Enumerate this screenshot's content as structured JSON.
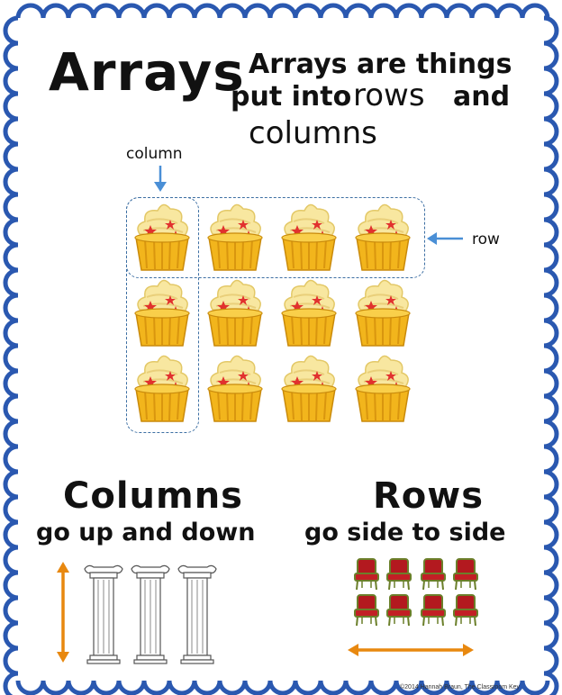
{
  "title": "Arrays",
  "definition": {
    "line1": "Arrays are things",
    "line2_prefix": "put into",
    "line2_word": "rows",
    "line2_suffix": "and",
    "line3_word": "columns"
  },
  "labels": {
    "column": "column",
    "row": "row"
  },
  "array": {
    "rows": 3,
    "columns": 4
  },
  "columns_section": {
    "heading": "Columns",
    "subheading": "go up and down"
  },
  "rows_section": {
    "heading": "Rows",
    "subheading": "go side to side"
  },
  "copyright": "©2014 Hannah Braun, The Classroom Key",
  "colors": {
    "border": "#2a58b0",
    "dash": "#3d6fa3",
    "pointer_arrow": "#4a8fd6",
    "orange_arrow": "#e8880f"
  }
}
